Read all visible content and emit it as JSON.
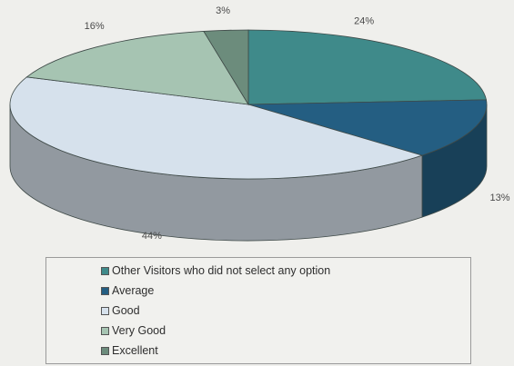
{
  "chart_data": {
    "type": "pie",
    "title": "",
    "slices": [
      {
        "label": "Other Visitors who did not select any option",
        "value": 24,
        "pct_label": "24%",
        "color": "#3f8a8a"
      },
      {
        "label": "Average",
        "value": 13,
        "pct_label": "13%",
        "color": "#245e82"
      },
      {
        "label": "Good",
        "value": 44,
        "pct_label": "44%",
        "color": "#d6e1ec"
      },
      {
        "label": "Very Good",
        "value": 16,
        "pct_label": "16%",
        "color": "#a6c4b2"
      },
      {
        "label": "Excellent",
        "value": 3,
        "pct_label": "3%",
        "color": "#6c8c7c"
      }
    ],
    "legend_position": "bottom"
  }
}
